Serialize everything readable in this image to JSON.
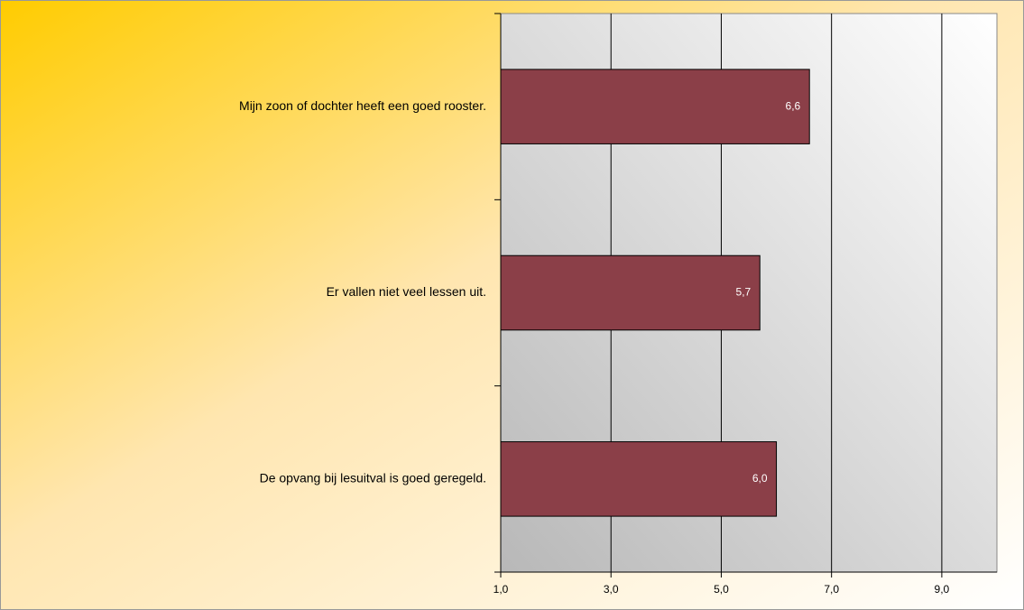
{
  "chart_data": {
    "type": "bar",
    "orientation": "horizontal",
    "categories": [
      "Mijn zoon of dochter heeft een goed rooster.",
      "Er vallen niet veel lessen uit.",
      "De opvang bij lesuitval is goed geregeld."
    ],
    "values": [
      6.6,
      5.7,
      6.0
    ],
    "value_labels": [
      "6,6",
      "5,7",
      "6,0"
    ],
    "color": "#8b3f48",
    "xlim": [
      1,
      10
    ],
    "xticks": [
      {
        "value": 1,
        "label": "1,0"
      },
      {
        "value": 3,
        "label": "3,0"
      },
      {
        "value": 5,
        "label": "5,0"
      },
      {
        "value": 7,
        "label": "7,0"
      },
      {
        "value": 9,
        "label": "9,0"
      }
    ],
    "grid": true
  }
}
